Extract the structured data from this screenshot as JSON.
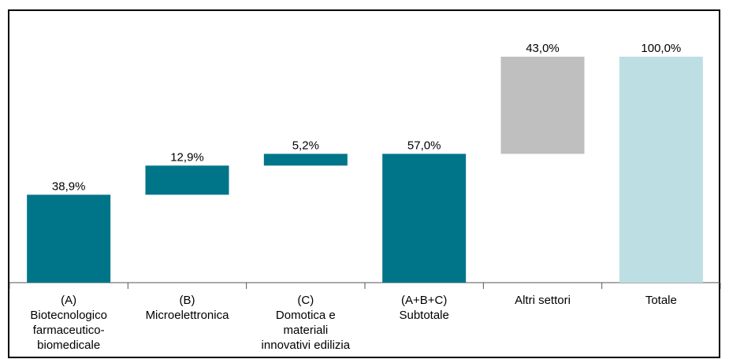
{
  "chart_data": {
    "type": "bar",
    "subtype": "waterfall",
    "categories": [
      [
        "(A)",
        "Biotecnologico",
        "farmaceutico-",
        "biomedicale"
      ],
      [
        "(B)",
        "Microelettronica"
      ],
      [
        "(C)",
        "Domotica e",
        "materiali",
        "innovativi edilizia"
      ],
      [
        "(A+B+C)",
        "Subtotale"
      ],
      [
        "Altri settori"
      ],
      [
        "Totale"
      ]
    ],
    "bars": [
      {
        "start": 0,
        "end": 38.9,
        "label": "38,9%",
        "color": "#00758a"
      },
      {
        "start": 38.9,
        "end": 51.8,
        "label": "12,9%",
        "color": "#00758a"
      },
      {
        "start": 51.8,
        "end": 57.0,
        "label": "5,2%",
        "color": "#00758a"
      },
      {
        "start": 0,
        "end": 57.0,
        "label": "57,0%",
        "color": "#00758a"
      },
      {
        "start": 57.0,
        "end": 100.0,
        "label": "43,0%",
        "color": "#bfbfbf"
      },
      {
        "start": 0,
        "end": 100.0,
        "label": "100,0%",
        "color": "#bddfe3"
      }
    ],
    "ylim": [
      0,
      100
    ],
    "grid": false,
    "legend": "none"
  }
}
